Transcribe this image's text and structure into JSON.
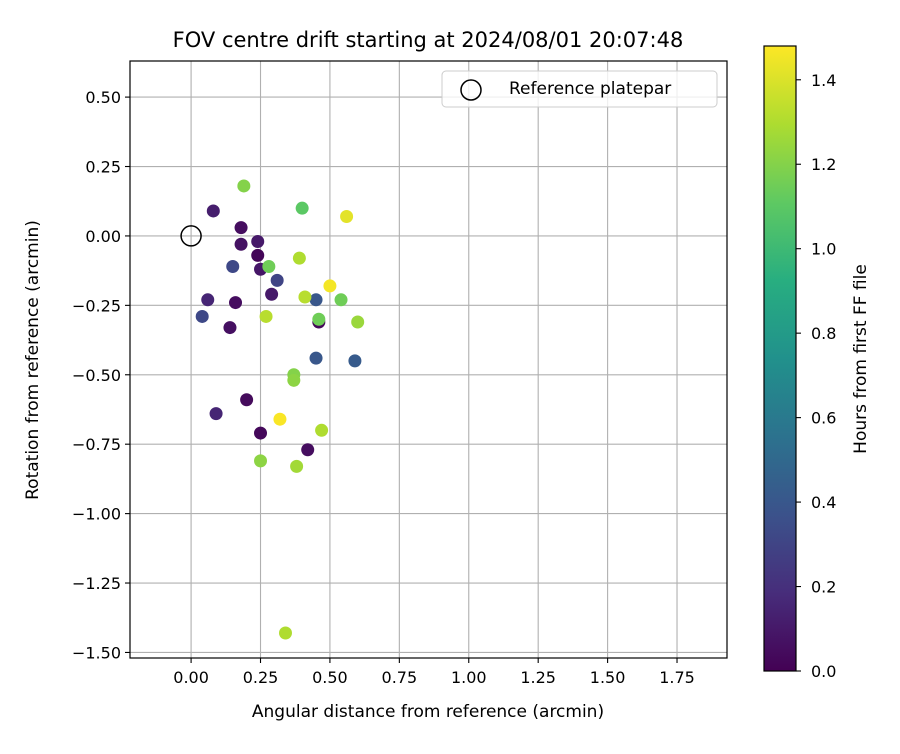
{
  "chart_data": {
    "type": "scatter",
    "title": "FOV centre drift starting at 2024/08/01 20:07:48",
    "xlabel": "Angular distance from reference (arcmin)",
    "ylabel": "Rotation from reference (arcmin)",
    "xlim": [
      -0.22,
      1.93
    ],
    "ylim": [
      -1.52,
      0.63
    ],
    "x_ticks": [
      0.0,
      0.25,
      0.5,
      0.75,
      1.0,
      1.25,
      1.5,
      1.75
    ],
    "x_tick_labels": [
      "0.00",
      "0.25",
      "0.50",
      "0.75",
      "1.00",
      "1.25",
      "1.50",
      "1.75"
    ],
    "y_ticks": [
      0.5,
      0.25,
      0.0,
      -0.25,
      -0.5,
      -0.75,
      -1.0,
      -1.25,
      -1.5
    ],
    "y_tick_labels": [
      "0.50",
      "0.25",
      "0.00",
      "−0.25",
      "−0.50",
      "−0.75",
      "−1.00",
      "−1.25",
      "−1.50"
    ],
    "grid": true,
    "legend": {
      "placement": "top-right",
      "entries": [
        {
          "label": "Reference platepar",
          "marker": "open-circle"
        }
      ]
    },
    "reference_point": {
      "x": 0.0,
      "y": 0.0
    },
    "colorbar": {
      "label": "Hours from first FF file",
      "colormap": "viridis",
      "range": [
        0.0,
        1.48
      ],
      "ticks": [
        0.0,
        0.2,
        0.4,
        0.6,
        0.8,
        1.0,
        1.2,
        1.4
      ],
      "tick_labels": [
        "0.0",
        "0.2",
        "0.4",
        "0.6",
        "0.8",
        "1.0",
        "1.2",
        "1.4"
      ]
    },
    "points": [
      {
        "x": 0.08,
        "y": 0.09,
        "h": 0.12
      },
      {
        "x": 0.18,
        "y": 0.03,
        "h": 0.05
      },
      {
        "x": 0.18,
        "y": -0.03,
        "h": 0.07
      },
      {
        "x": 0.24,
        "y": -0.02,
        "h": 0.1
      },
      {
        "x": 0.24,
        "y": -0.07,
        "h": 0.02
      },
      {
        "x": 0.25,
        "y": -0.12,
        "h": 0.09
      },
      {
        "x": 0.15,
        "y": -0.11,
        "h": 0.32
      },
      {
        "x": 0.31,
        "y": -0.16,
        "h": 0.3
      },
      {
        "x": 0.29,
        "y": -0.21,
        "h": 0.1
      },
      {
        "x": 0.06,
        "y": -0.23,
        "h": 0.15
      },
      {
        "x": 0.16,
        "y": -0.24,
        "h": 0.05
      },
      {
        "x": 0.04,
        "y": -0.29,
        "h": 0.32
      },
      {
        "x": 0.14,
        "y": -0.33,
        "h": 0.06
      },
      {
        "x": 0.46,
        "y": -0.31,
        "h": 0.03
      },
      {
        "x": 0.45,
        "y": -0.23,
        "h": 0.4
      },
      {
        "x": 0.45,
        "y": -0.44,
        "h": 0.4
      },
      {
        "x": 0.59,
        "y": -0.45,
        "h": 0.42
      },
      {
        "x": 0.09,
        "y": -0.64,
        "h": 0.15
      },
      {
        "x": 0.2,
        "y": -0.59,
        "h": 0.04
      },
      {
        "x": 0.25,
        "y": -0.71,
        "h": 0.03
      },
      {
        "x": 0.42,
        "y": -0.77,
        "h": 0.05
      },
      {
        "x": 0.19,
        "y": 0.18,
        "h": 1.2
      },
      {
        "x": 0.4,
        "y": 0.1,
        "h": 1.1
      },
      {
        "x": 0.56,
        "y": 0.07,
        "h": 1.42
      },
      {
        "x": 0.28,
        "y": -0.11,
        "h": 1.15
      },
      {
        "x": 0.39,
        "y": -0.08,
        "h": 1.3
      },
      {
        "x": 0.5,
        "y": -0.18,
        "h": 1.46
      },
      {
        "x": 0.41,
        "y": -0.22,
        "h": 1.32
      },
      {
        "x": 0.54,
        "y": -0.23,
        "h": 1.15
      },
      {
        "x": 0.27,
        "y": -0.29,
        "h": 1.32
      },
      {
        "x": 0.46,
        "y": -0.3,
        "h": 1.15
      },
      {
        "x": 0.6,
        "y": -0.31,
        "h": 1.25
      },
      {
        "x": 0.37,
        "y": -0.5,
        "h": 1.2
      },
      {
        "x": 0.37,
        "y": -0.52,
        "h": 1.22
      },
      {
        "x": 0.32,
        "y": -0.66,
        "h": 1.47
      },
      {
        "x": 0.47,
        "y": -0.7,
        "h": 1.3
      },
      {
        "x": 0.25,
        "y": -0.81,
        "h": 1.22
      },
      {
        "x": 0.38,
        "y": -0.83,
        "h": 1.27
      },
      {
        "x": 0.34,
        "y": -1.43,
        "h": 1.3
      }
    ]
  }
}
